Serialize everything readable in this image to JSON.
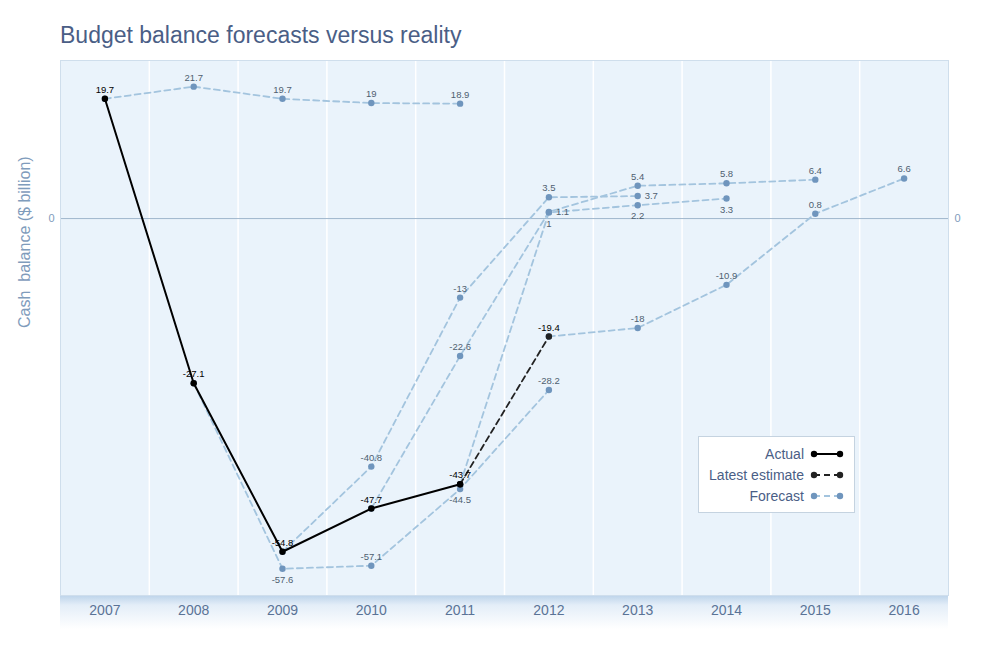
{
  "chart_data": {
    "type": "line",
    "title": "Budget balance forecasts versus reality",
    "y_label": "Cash  balance ($ billion)",
    "x": [
      2007,
      2008,
      2009,
      2010,
      2011,
      2012,
      2013,
      2014,
      2015,
      2016
    ],
    "series": [
      {
        "name": "Forecast",
        "color": "#a3c4de",
        "line_style": "dashed",
        "marker": "circle",
        "values": [
          19.7,
          21.7,
          19.7,
          19,
          18.9,
          null,
          null,
          null,
          null,
          null
        ]
      },
      {
        "name": "Forecast",
        "color": "#a3c4de",
        "line_style": "dashed",
        "marker": "circle",
        "values": [
          null,
          -27.1,
          -57.6,
          -57.1,
          -44.5,
          -28.2,
          null,
          null,
          null,
          null
        ]
      },
      {
        "name": "Forecast",
        "color": "#a3c4de",
        "line_style": "dashed",
        "marker": "circle",
        "values": [
          null,
          null,
          -54.8,
          -40.8,
          -13,
          3.5,
          3.7,
          null,
          null,
          null
        ]
      },
      {
        "name": "Forecast",
        "color": "#a3c4de",
        "line_style": "dashed",
        "marker": "circle",
        "values": [
          null,
          null,
          null,
          -47.7,
          -22.6,
          1.1,
          5.4,
          5.8,
          6.4,
          null
        ]
      },
      {
        "name": "Forecast",
        "color": "#a3c4de",
        "line_style": "dashed",
        "marker": "circle",
        "values": [
          null,
          null,
          null,
          null,
          -43.7,
          1,
          2.2,
          3.3,
          null,
          null
        ]
      },
      {
        "name": "Forecast",
        "color": "#a3c4de",
        "line_style": "dashed",
        "marker": "circle",
        "values": [
          null,
          null,
          null,
          null,
          null,
          -19.4,
          -18,
          -10.9,
          0.8,
          6.6
        ]
      },
      {
        "name": "Latest estimate",
        "color": "#222222",
        "line_style": "dashed",
        "marker": "circle",
        "values": [
          null,
          null,
          null,
          null,
          -43.7,
          -19.4,
          null,
          null,
          null,
          null
        ]
      },
      {
        "name": "Actual",
        "color": "#000000",
        "line_style": "solid",
        "marker": "circle",
        "values": [
          19.7,
          -27.1,
          -54.8,
          -47.7,
          -43.7,
          null,
          null,
          null,
          null,
          null
        ]
      }
    ],
    "xlim": [
      2006.5,
      2016.5
    ],
    "xticks": [
      2007,
      2008,
      2009,
      2010,
      2011,
      2012,
      2013,
      2014,
      2015,
      2016
    ],
    "ylim": [
      -62,
      26
    ],
    "yticks": [
      0
    ],
    "grid": true,
    "legend": "bottom-right",
    "data_labels": true
  }
}
